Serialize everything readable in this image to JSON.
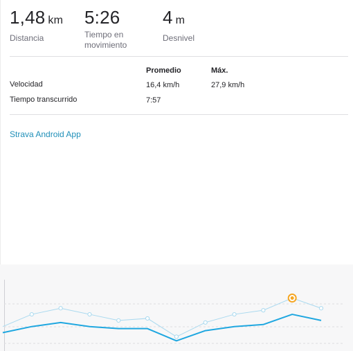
{
  "stats": [
    {
      "value": "1,48",
      "unit": "km",
      "label": "Distancia"
    },
    {
      "value": "5:26",
      "unit": "",
      "label": "Tiempo en\nmovimiento"
    },
    {
      "value": "4",
      "unit": "m",
      "label": "Desnivel"
    }
  ],
  "table": {
    "headers": {
      "avg": "Promedio",
      "max": "Máx."
    },
    "rows": [
      {
        "label": "Velocidad",
        "avg": "16,4 km/h",
        "max": "27,9 km/h"
      },
      {
        "label": "Tiempo transcurrido",
        "avg": "7:57",
        "max": ""
      }
    ]
  },
  "app_link": "Strava Android App",
  "colors": {
    "accent": "#1fa7e0",
    "accent_light": "#a9d9ef",
    "highlight": "#f5a623",
    "link": "#1f8fb8"
  },
  "chart_data": {
    "type": "line",
    "series": [
      {
        "values": [
          3.0,
          6.0,
          7.5,
          6.0,
          4.5,
          5.0,
          0.5,
          4.0,
          6.0,
          7.0,
          10.0,
          7.5
        ]
      },
      {
        "values": [
          1.5,
          3.0,
          4.0,
          3.0,
          2.5,
          2.5,
          -0.5,
          2.0,
          3.0,
          3.5,
          6.0,
          4.5
        ]
      }
    ],
    "highlight_index": 10,
    "ylim": [
      -3,
      14
    ],
    "grid": true
  }
}
